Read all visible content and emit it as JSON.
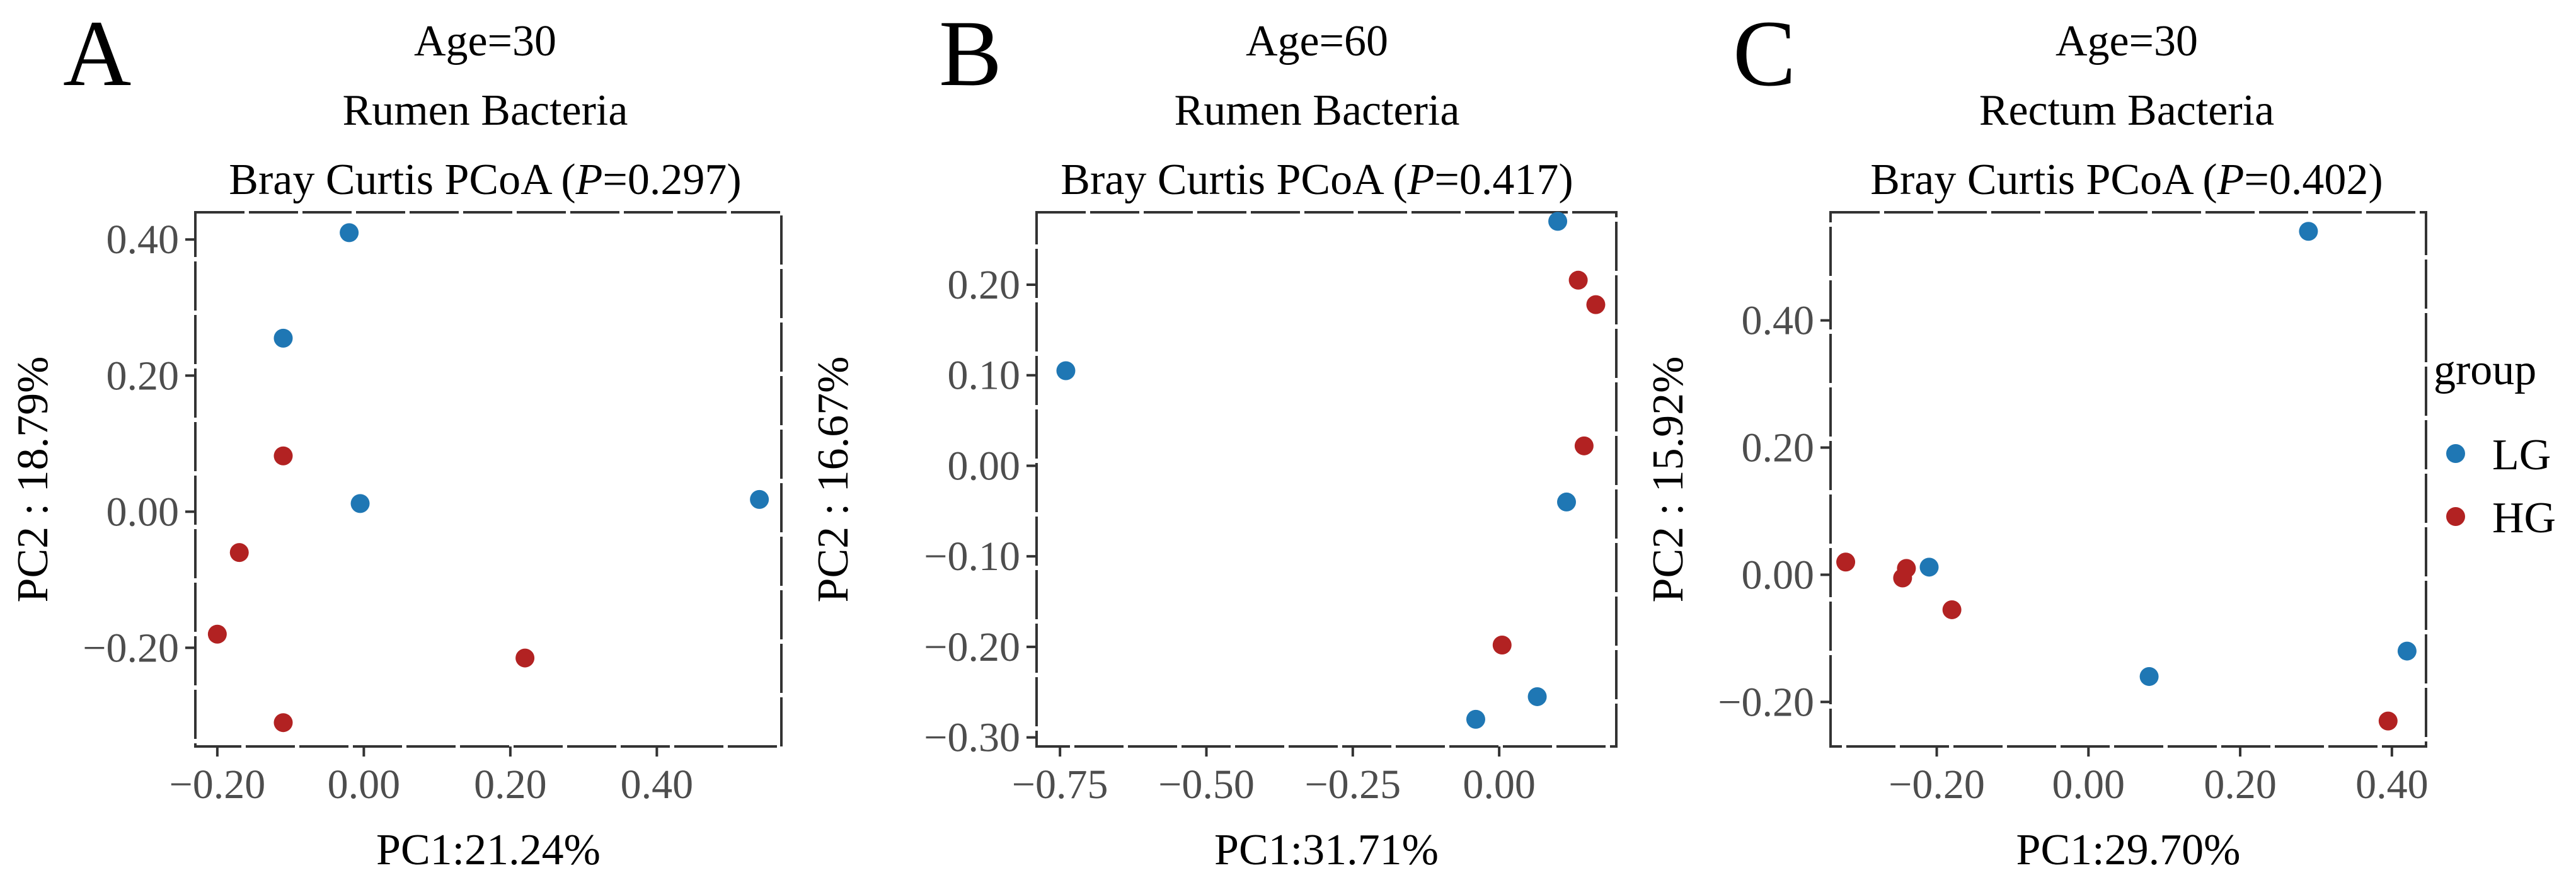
{
  "colors": {
    "LG": "#1f77b4",
    "HG": "#b22222"
  },
  "legend": {
    "title": "group",
    "entries": [
      {
        "label": "LG",
        "color": "#1f77b4"
      },
      {
        "label": "HG",
        "color": "#b22222"
      }
    ]
  },
  "chart_data": [
    {
      "type": "scatter",
      "panel": "A",
      "title_lines": [
        "Age=30",
        "Rumen Bacteria"
      ],
      "title_stat": {
        "prefix": "Bray Curtis PCoA (",
        "italic": "P",
        "suffix": "=0.297)"
      },
      "xlabel": "PC1:21.24%",
      "ylabel": "PC2 : 18.79%",
      "xlim": [
        -0.23,
        0.57
      ],
      "ylim": [
        -0.345,
        0.44
      ],
      "x_ticks": [
        -0.2,
        0.0,
        0.2,
        0.4
      ],
      "x_tick_labels": [
        "−0.20",
        "0.00",
        "0.20",
        "0.40"
      ],
      "y_ticks": [
        -0.2,
        0.0,
        0.2,
        0.4
      ],
      "y_tick_labels": [
        "−0.20",
        "0.00",
        "0.20",
        "0.40"
      ],
      "series": [
        {
          "name": "LG",
          "x": [
            -0.02,
            -0.11,
            -0.005,
            0.54
          ],
          "y": [
            0.41,
            0.255,
            0.012,
            0.018
          ]
        },
        {
          "name": "HG",
          "x": [
            -0.11,
            -0.17,
            -0.2,
            0.22,
            -0.11
          ],
          "y": [
            0.082,
            -0.06,
            -0.18,
            -0.215,
            -0.31
          ]
        }
      ]
    },
    {
      "type": "scatter",
      "panel": "B",
      "title_lines": [
        "Age=60",
        "Rumen Bacteria"
      ],
      "title_stat": {
        "prefix": "Bray Curtis PCoA (",
        "italic": "P",
        "suffix": "=0.417)"
      },
      "xlabel": "PC1:31.71%",
      "ylabel": "PC2 : 16.67%",
      "xlim": [
        -0.79,
        0.2
      ],
      "ylim": [
        -0.31,
        0.28
      ],
      "x_ticks": [
        -0.75,
        -0.5,
        -0.25,
        0.0
      ],
      "x_tick_labels": [
        "−0.75",
        "−0.50",
        "−0.25",
        "0.00"
      ],
      "y_ticks": [
        -0.3,
        -0.2,
        -0.1,
        0.0,
        0.1,
        0.2
      ],
      "y_tick_labels": [
        "−0.30",
        "−0.20",
        "−0.10",
        "0.00",
        "0.10",
        "0.20"
      ],
      "series": [
        {
          "name": "LG",
          "x": [
            -0.74,
            0.1,
            0.115,
            -0.04,
            0.065
          ],
          "y": [
            0.105,
            0.27,
            -0.04,
            -0.28,
            -0.255
          ]
        },
        {
          "name": "HG",
          "x": [
            0.135,
            0.165,
            0.145,
            0.005
          ],
          "y": [
            0.205,
            0.178,
            0.022,
            -0.198
          ]
        }
      ]
    },
    {
      "type": "scatter",
      "panel": "C",
      "title_lines": [
        "Age=30",
        "Rectum Bacteria"
      ],
      "title_stat": {
        "prefix": "Bray Curtis PCoA (",
        "italic": "P",
        "suffix": "=0.402)"
      },
      "xlabel": "PC1:29.70%",
      "ylabel": "PC2 : 15.92%",
      "xlim": [
        -0.34,
        0.445
      ],
      "ylim": [
        -0.27,
        0.57
      ],
      "x_ticks": [
        -0.2,
        0.0,
        0.2,
        0.4
      ],
      "x_tick_labels": [
        "−0.20",
        "0.00",
        "0.20",
        "0.40"
      ],
      "y_ticks": [
        -0.2,
        0.0,
        0.2,
        0.4
      ],
      "y_tick_labels": [
        "−0.20",
        "0.00",
        "0.20",
        "0.40"
      ],
      "series": [
        {
          "name": "LG",
          "x": [
            0.29,
            -0.21,
            0.08,
            0.42
          ],
          "y": [
            0.54,
            0.012,
            -0.16,
            -0.12
          ]
        },
        {
          "name": "HG",
          "x": [
            -0.32,
            -0.24,
            -0.245,
            -0.18,
            0.395
          ],
          "y": [
            0.02,
            0.01,
            -0.005,
            -0.055,
            -0.23
          ]
        }
      ]
    }
  ]
}
